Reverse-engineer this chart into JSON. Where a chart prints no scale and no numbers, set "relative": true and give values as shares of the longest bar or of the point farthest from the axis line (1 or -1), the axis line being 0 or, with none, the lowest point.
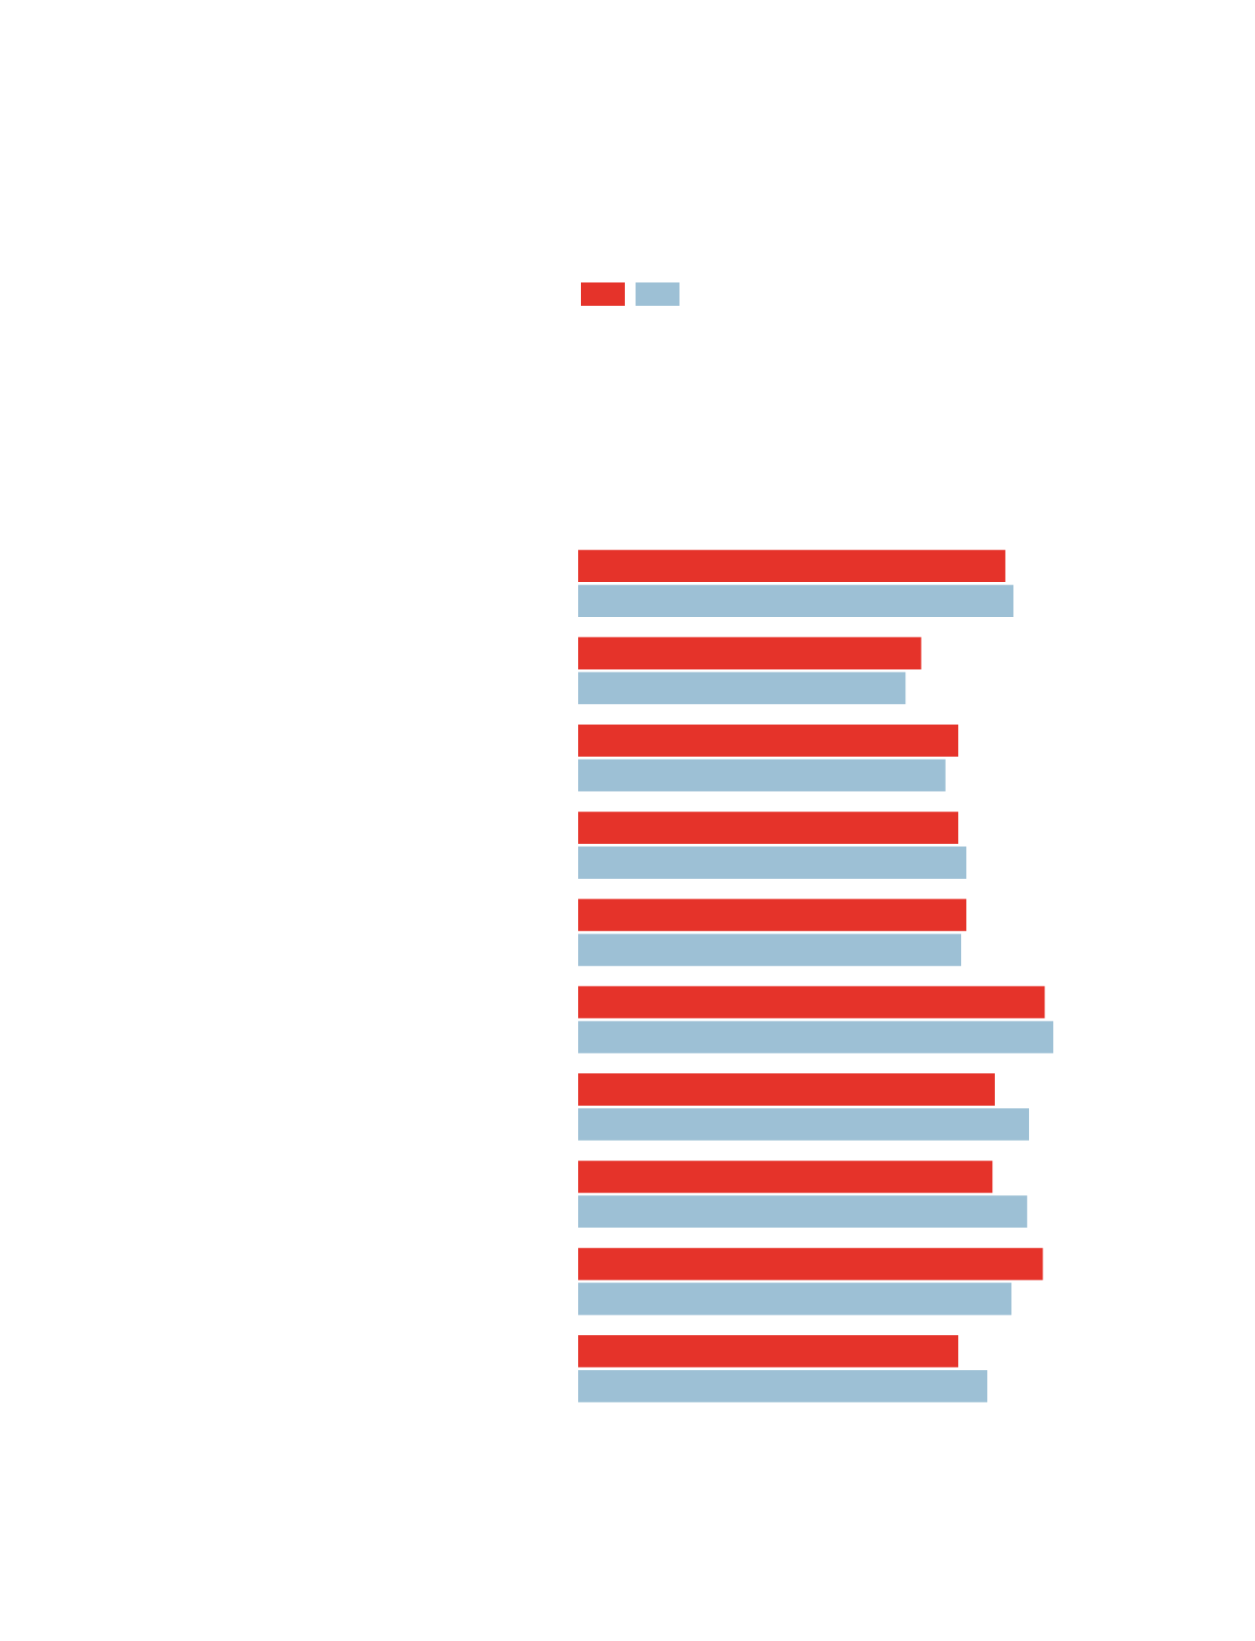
{
  "chart_data": {
    "type": "bar",
    "orientation": "horizontal",
    "relative": true,
    "categories": [
      null,
      null,
      null,
      null,
      null,
      null,
      null,
      null,
      null,
      null
    ],
    "series": [
      {
        "color": "#e5332a",
        "values": [
          0.899,
          0.722,
          0.8,
          0.8,
          0.817,
          0.982,
          0.877,
          0.872,
          0.978,
          0.8
        ]
      },
      {
        "color": "#9dc0d5",
        "values": [
          0.916,
          0.689,
          0.773,
          0.817,
          0.806,
          1,
          0.949,
          0.945,
          0.912,
          0.861
        ]
      }
    ]
  }
}
